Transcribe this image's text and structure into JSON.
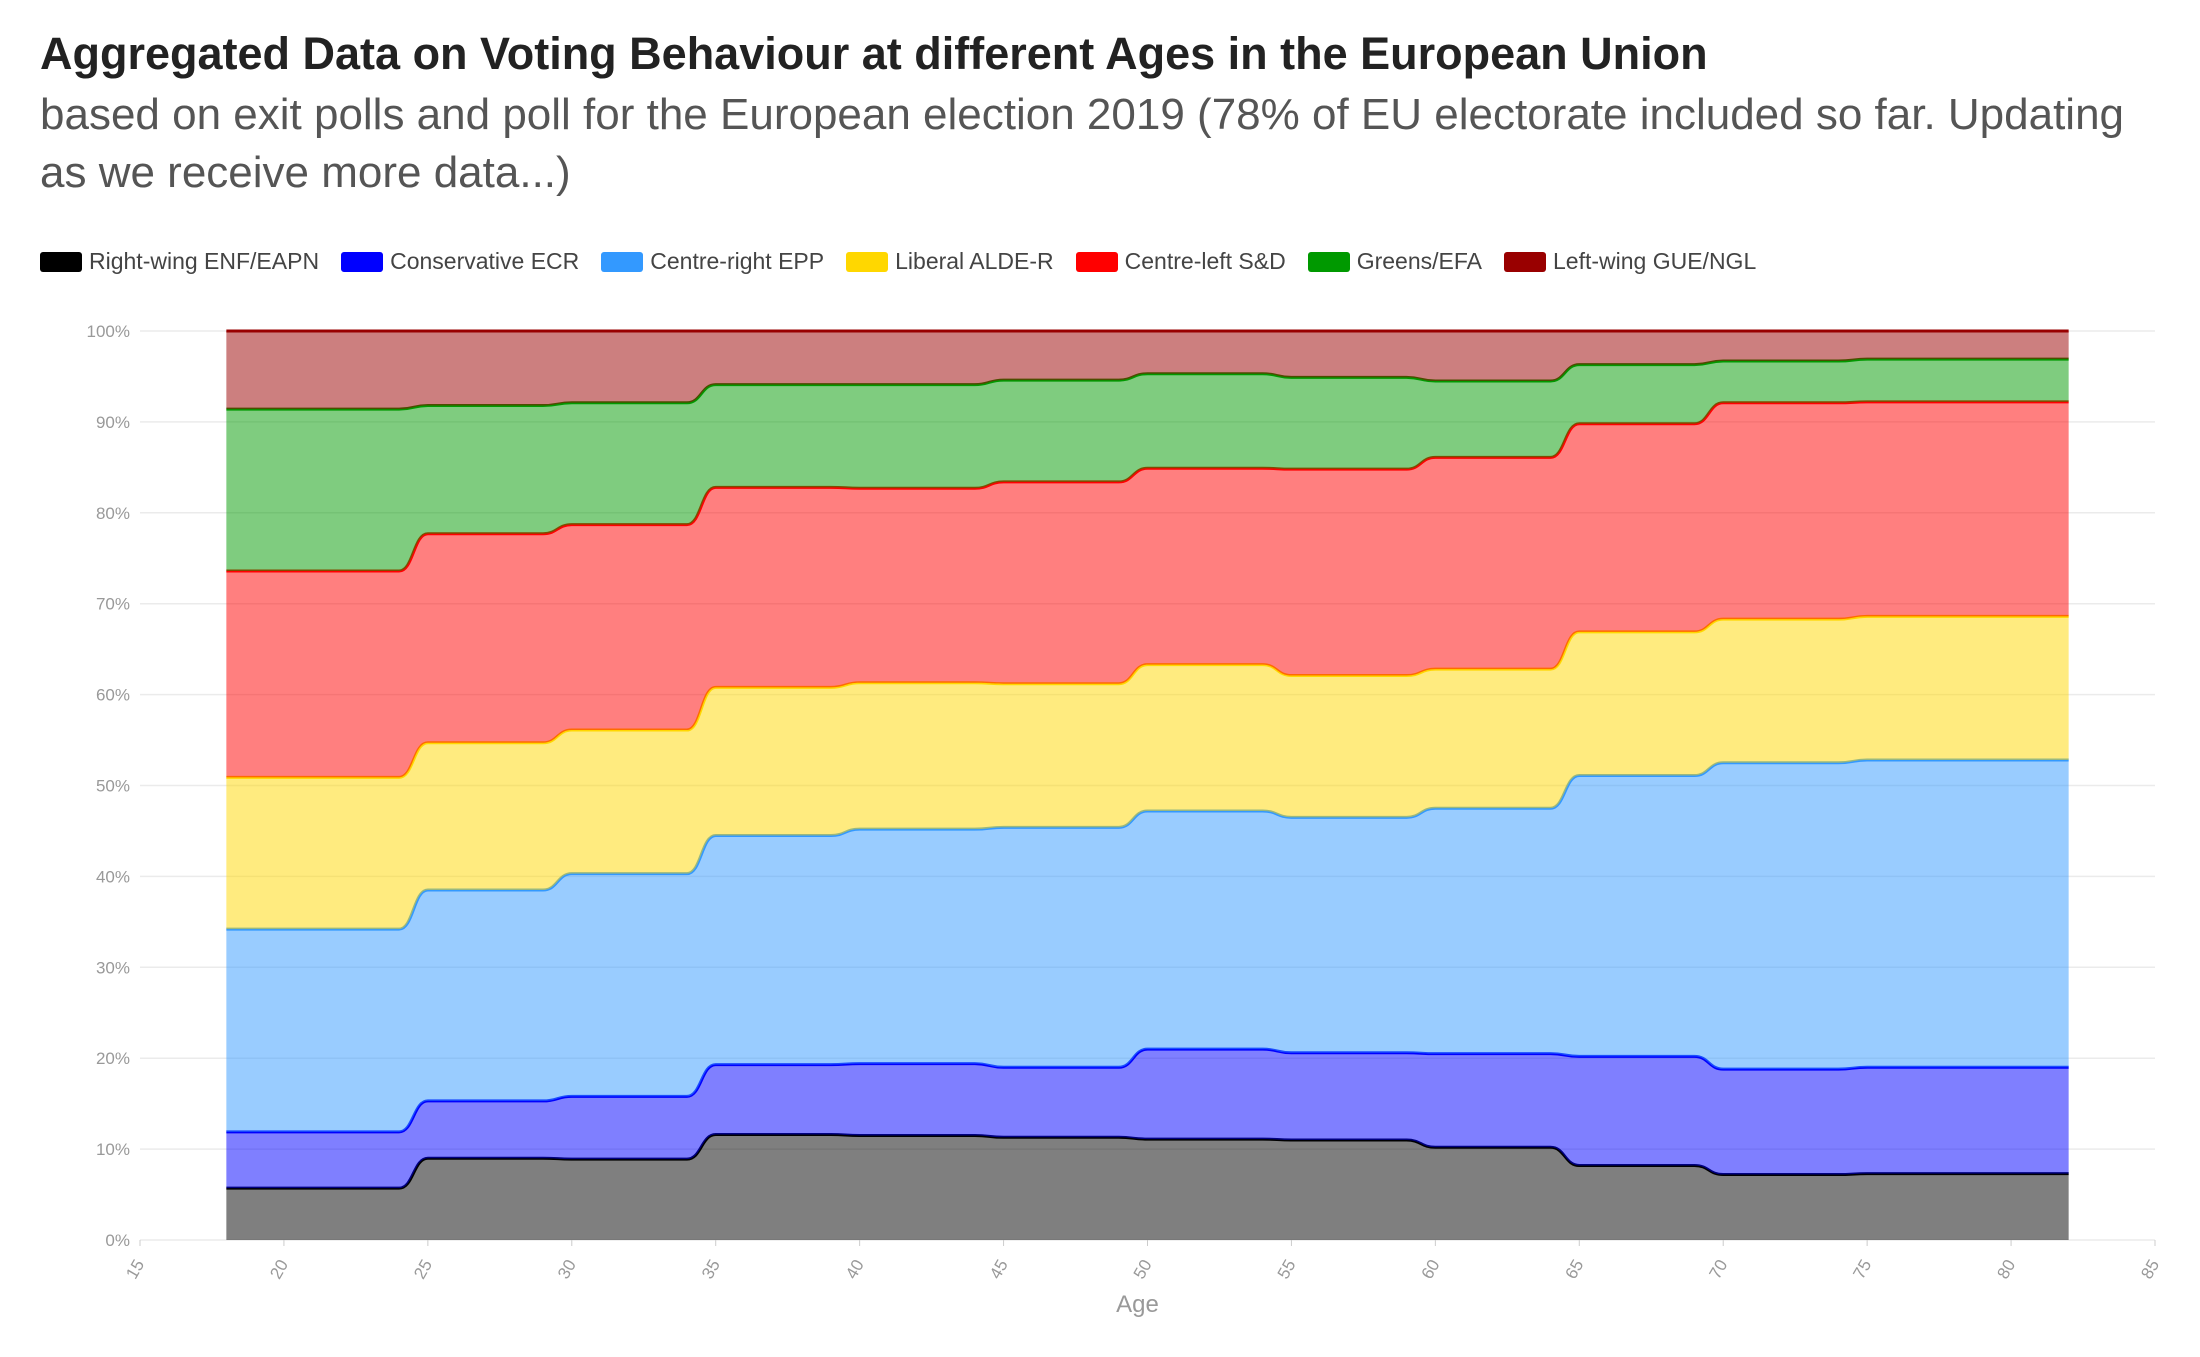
{
  "header": {
    "title": "Aggregated Data on Voting Behaviour at different Ages in the European Union",
    "subtitle": "based on exit polls and poll for the European election 2019 (78% of EU electorate included so far. Updating as we receive more data...)"
  },
  "chart_data": {
    "type": "area",
    "stacked": true,
    "xlabel": "Age",
    "ylabel": "",
    "xlim": [
      15,
      85
    ],
    "ylim": [
      0,
      100
    ],
    "x_ticks": [
      "15",
      "20",
      "25",
      "30",
      "35",
      "40",
      "45",
      "50",
      "55",
      "60",
      "65",
      "70",
      "75",
      "80",
      "85"
    ],
    "y_ticks": [
      "0%",
      "10%",
      "20%",
      "30%",
      "40%",
      "50%",
      "60%",
      "70%",
      "80%",
      "90%",
      "100%"
    ],
    "grid": true,
    "legend_position": "top-left",
    "x": [
      18,
      24,
      25,
      29,
      30,
      34,
      35,
      39,
      40,
      44,
      45,
      49,
      50,
      54,
      55,
      59,
      60,
      64,
      65,
      69,
      70,
      74,
      75,
      82
    ],
    "series": [
      {
        "name": "Right-wing ENF/EAPN",
        "color": "#000000",
        "values": [
          5.7,
          5.7,
          9.0,
          9.0,
          8.9,
          8.9,
          11.6,
          11.6,
          11.5,
          11.5,
          11.3,
          11.3,
          11.1,
          11.1,
          11.0,
          11.0,
          10.2,
          10.2,
          8.2,
          8.2,
          7.2,
          7.2,
          7.3,
          7.3
        ]
      },
      {
        "name": "Conservative ECR",
        "color": "#0000ff",
        "values": [
          6.2,
          6.2,
          6.3,
          6.3,
          6.9,
          6.9,
          7.7,
          7.7,
          7.9,
          7.9,
          7.7,
          7.7,
          9.9,
          9.9,
          9.6,
          9.6,
          10.3,
          10.3,
          12.0,
          12.0,
          11.6,
          11.6,
          11.7,
          11.7
        ]
      },
      {
        "name": "Centre-right EPP",
        "color": "#3399ff",
        "values": [
          22.3,
          22.3,
          23.2,
          23.2,
          24.5,
          24.5,
          25.2,
          25.2,
          25.8,
          25.8,
          26.4,
          26.4,
          26.2,
          26.2,
          25.9,
          25.9,
          27.0,
          27.0,
          30.9,
          30.9,
          33.7,
          33.7,
          33.8,
          33.8
        ]
      },
      {
        "name": "Liberal ALDE-R",
        "color": "#ffd700",
        "values": [
          16.7,
          16.7,
          16.2,
          16.2,
          15.8,
          15.8,
          16.3,
          16.3,
          16.1,
          16.1,
          15.8,
          15.8,
          16.1,
          16.1,
          15.6,
          15.6,
          15.3,
          15.3,
          15.8,
          15.8,
          15.8,
          15.8,
          15.8,
          15.8
        ]
      },
      {
        "name": "Centre-left S&D",
        "color": "#ff0000",
        "values": [
          22.7,
          22.7,
          23.0,
          23.0,
          22.6,
          22.6,
          22.0,
          22.0,
          21.4,
          21.4,
          22.2,
          22.2,
          21.6,
          21.6,
          22.7,
          22.7,
          23.3,
          23.3,
          22.9,
          22.9,
          23.8,
          23.8,
          23.6,
          23.6
        ]
      },
      {
        "name": "Greens/EFA",
        "color": "#009900",
        "values": [
          17.8,
          17.8,
          14.1,
          14.1,
          13.4,
          13.4,
          11.3,
          11.3,
          11.4,
          11.4,
          11.2,
          11.2,
          10.4,
          10.4,
          10.1,
          10.1,
          8.4,
          8.4,
          6.5,
          6.5,
          4.6,
          4.6,
          4.7,
          4.7
        ]
      },
      {
        "name": "Left-wing GUE/NGL",
        "color": "#990000",
        "values": [
          8.6,
          8.6,
          8.2,
          8.2,
          7.9,
          7.9,
          5.9,
          5.9,
          5.9,
          5.9,
          5.4,
          5.4,
          4.7,
          4.7,
          5.1,
          5.1,
          5.5,
          5.5,
          3.7,
          3.7,
          3.3,
          3.3,
          3.1,
          3.1
        ]
      }
    ]
  }
}
